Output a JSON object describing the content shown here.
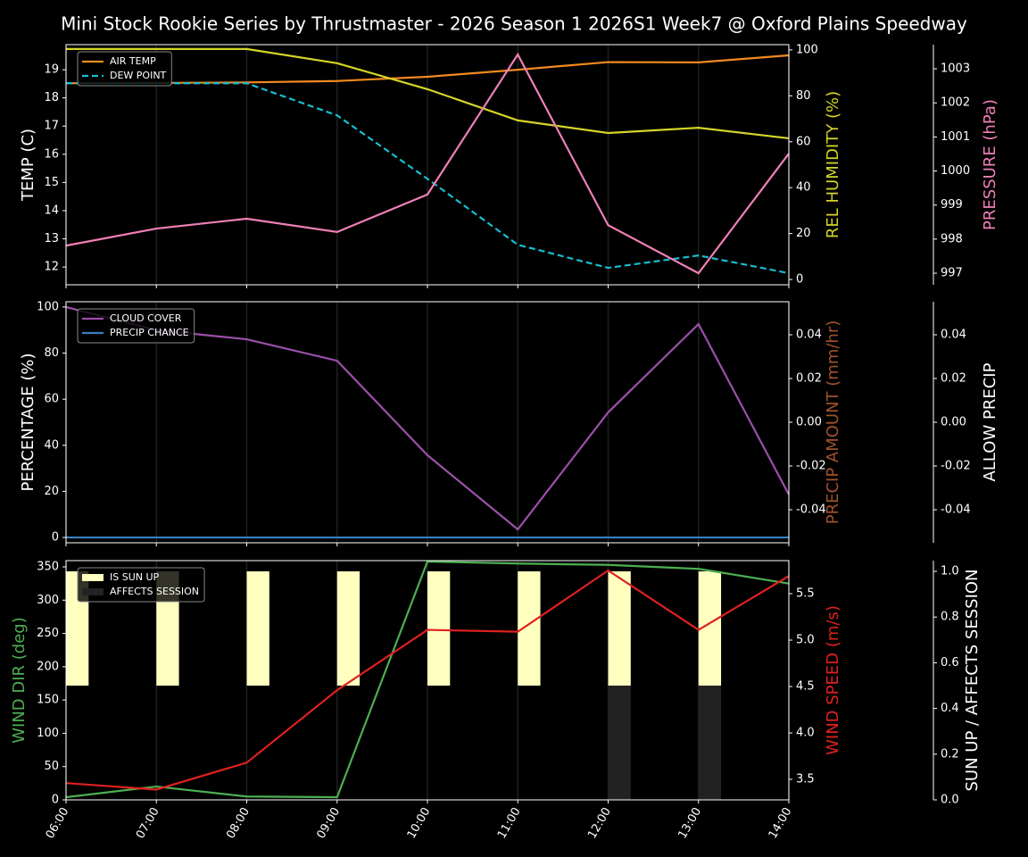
{
  "title": "Mini Stock Rookie Series by Thrustmaster - 2026 Season 1 2026S1 Week7 @ Oxford Plains Speedway",
  "categories": [
    "06:00",
    "07:00",
    "08:00",
    "09:00",
    "10:00",
    "11:00",
    "12:00",
    "13:00",
    "14:00"
  ],
  "chart_data": [
    {
      "type": "line",
      "legend": "upper left",
      "xgrid": true,
      "ylabel": "TEMP (C)",
      "ylim": [
        11.37,
        19.89
      ],
      "yticks": [
        12,
        13,
        14,
        15,
        16,
        17,
        18,
        19
      ],
      "ylabel_color": "#ffffff",
      "y2label": "REL HUMIDITY (%)",
      "y2lim": [
        -2.3,
        102.3
      ],
      "y2ticks": [
        0,
        20,
        40,
        60,
        80,
        100
      ],
      "y2label_color": "#d4d42a",
      "y3label": "PRESSURE (hPa)",
      "y3lim": [
        996.66,
        1003.71
      ],
      "y3ticks": [
        997,
        998,
        999,
        1000,
        1001,
        1002,
        1003
      ],
      "y3label_color": "#f07fb8",
      "series": [
        {
          "name": "AIR TEMP",
          "color": "#f28a1f",
          "axis": "y",
          "values": [
            18.52,
            18.53,
            18.55,
            18.6,
            18.75,
            19.0,
            19.27,
            19.26,
            19.51
          ]
        },
        {
          "name": "DEW POINT",
          "color": "#17becf",
          "axis": "y",
          "dash": true,
          "values": [
            18.52,
            18.52,
            18.52,
            17.38,
            15.13,
            12.79,
            11.97,
            12.41,
            11.78
          ]
        },
        {
          "color": "#d4d42a",
          "axis": "y2",
          "values": [
            100.4,
            100.4,
            100.4,
            94.2,
            82.9,
            69.3,
            63.8,
            66.1,
            61.5
          ]
        },
        {
          "color": "#f07fb8",
          "axis": "y3",
          "values": [
            997.81,
            998.31,
            998.6,
            998.21,
            999.31,
            1003.42,
            998.41,
            997.0,
            1000.51
          ]
        }
      ]
    },
    {
      "type": "line",
      "legend": "upper left",
      "xgrid": true,
      "ylabel": "PERCENTAGE (%)",
      "ylim": [
        -2.3,
        102.3
      ],
      "yticks": [
        0,
        20,
        40,
        60,
        80,
        100
      ],
      "ylabel_color": "#ffffff",
      "y2label": "PRECIP AMOUNT (mm/hr)",
      "y2lim": [
        -0.0551,
        0.0551
      ],
      "y2ticks": [
        -0.04,
        -0.02,
        {
          "value": 0,
          "label": "0.00"
        },
        0.02,
        0.04
      ],
      "y2label_color": "#a0522d",
      "y3label": "ALLOW PRECIP",
      "y3lim": [
        -0.0551,
        0.0551
      ],
      "y3ticks": [
        -0.04,
        -0.02,
        {
          "value": 0,
          "label": "0.00"
        },
        0.02,
        0.04
      ],
      "y3label_color": "#ffffff",
      "series": [
        {
          "name": "CLOUD COVER",
          "color": "#9b4fa8",
          "axis": "y",
          "values": [
            100,
            90,
            86,
            76.7,
            35.7,
            3.5,
            54.3,
            92.6,
            18.6
          ]
        },
        {
          "name": "PRECIP CHANCE",
          "color": "#3a7ebf",
          "axis": "y",
          "values": [
            0,
            0,
            0,
            0,
            0,
            0,
            0,
            0,
            0
          ]
        }
      ]
    },
    {
      "type": "line",
      "legend": "upper left",
      "xgrid": true,
      "xticklabels": true,
      "ylabel": "WIND DIR (deg)",
      "ylim": [
        0,
        359.4
      ],
      "yticks": [
        0,
        50,
        100,
        150,
        200,
        250,
        300,
        350
      ],
      "ylabel_color": "#4caf50",
      "y2label": "WIND SPEED (m/s)",
      "y2lim": [
        3.279,
        5.856
      ],
      "y2ticks": [
        3.5,
        {
          "value": 4,
          "label": "4.0"
        },
        4.5,
        {
          "value": 5,
          "label": "5.0"
        },
        5.5
      ],
      "y2label_color": "#e02020",
      "y3label": "SUN UP / AFFECTS SESSION",
      "y3lim": [
        0,
        1.047
      ],
      "y3ticks": [
        {
          "value": 0,
          "label": "0.0"
        },
        0.2,
        0.4,
        0.6,
        0.8,
        {
          "value": 1,
          "label": "1.0"
        }
      ],
      "y3label_color": "#ffffff",
      "series": [
        {
          "name": "IS SUN UP",
          "type": "bar",
          "color": "#ffffc0",
          "axis": "y3",
          "base": 0.5,
          "values": [
            0.5,
            0.5,
            0.5,
            0.5,
            0.5,
            0.5,
            0.5,
            0.5,
            null
          ]
        },
        {
          "name": "AFFECTS SESSION",
          "type": "bar",
          "color": "#222222",
          "axis": "y3",
          "base": 0,
          "values": [
            0,
            0,
            0,
            0,
            0,
            0,
            0.5,
            0.5,
            null
          ]
        },
        {
          "color": "#4caf50",
          "axis": "y",
          "values": [
            4,
            20,
            5,
            4,
            358,
            355,
            353,
            347,
            325
          ]
        },
        {
          "color": "#e02020",
          "axis": "y2",
          "values": [
            3.46,
            3.39,
            3.68,
            4.46,
            5.11,
            5.09,
            5.75,
            5.11,
            5.69
          ]
        }
      ]
    }
  ]
}
